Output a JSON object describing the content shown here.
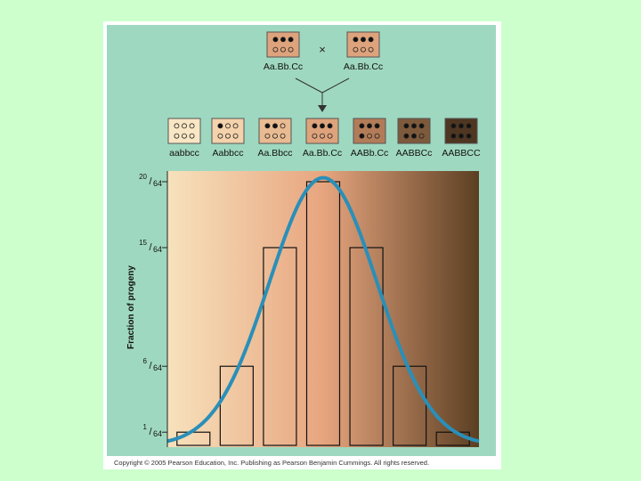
{
  "figure": {
    "cross": {
      "parent1": "Aa.Bb.Cc",
      "parent2": "Aa.Bb.Cc",
      "symbol": "×"
    },
    "credit": "Copyright © 2005 Pearson Education, Inc. Publishing as Pearson Benjamin Cummings. All rights reserved."
  },
  "colors": {
    "page_background": "#ccffcc",
    "panel_background": "#9fd8c0",
    "curve": "#2a8fb8",
    "gradient_light": "#f7e2bd",
    "gradient_mid": "#e7a57f",
    "gradient_dark": "#5b3f22"
  },
  "chart_data": {
    "type": "bar",
    "categories": [
      "aabbcc",
      "Aabbcc",
      "Aa.Bbcc",
      "Aa.Bb.Cc",
      "AABb.Cc",
      "AABBCc",
      "AABBCC"
    ],
    "values": [
      1,
      6,
      15,
      20,
      15,
      6,
      1
    ],
    "value_unit": "/64",
    "ylabel": "Fraction of progeny",
    "yticks": [
      {
        "num": "1",
        "den": "64",
        "value": 1
      },
      {
        "num": "6",
        "den": "64",
        "value": 6
      },
      {
        "num": "15",
        "den": "64",
        "value": 15
      },
      {
        "num": "20",
        "den": "64",
        "value": 20
      }
    ],
    "ylim": [
      0,
      21
    ],
    "overlay": "normal-curve",
    "genotype_dark_alleles": [
      0,
      1,
      2,
      3,
      4,
      5,
      6
    ],
    "genotype_box_colors": [
      "#f9e6c4",
      "#f3d2ac",
      "#e9bb92",
      "#dea37c",
      "#b27c58",
      "#7d5a3b",
      "#4e3621"
    ]
  }
}
